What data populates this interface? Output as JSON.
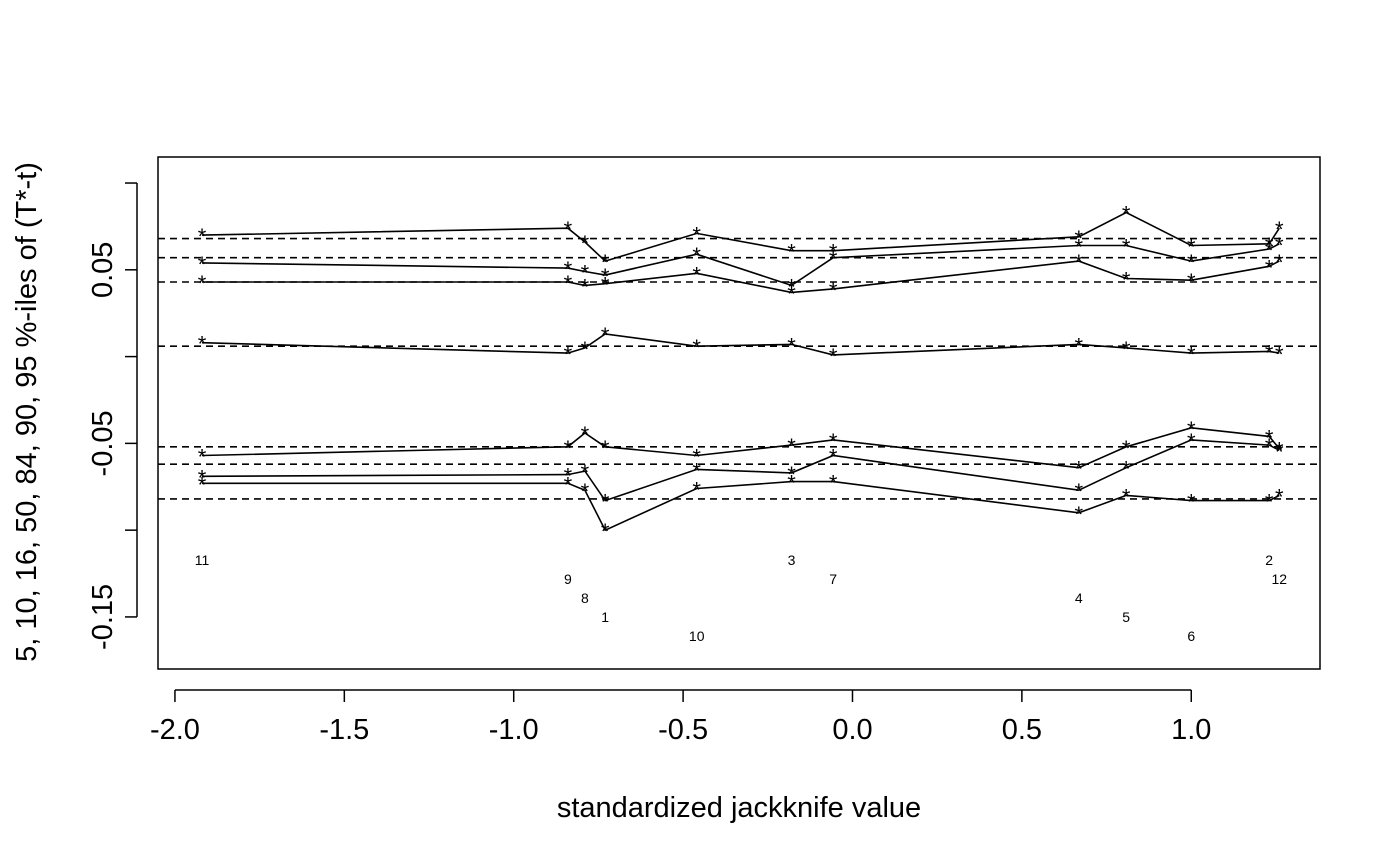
{
  "chart_data": {
    "type": "line",
    "xlabel": "standardized jackknife value",
    "ylabel": "5, 10, 16, 50, 84, 90, 95 %-iles of (T*-t)",
    "xlim": [
      -2.05,
      1.38
    ],
    "ylim": [
      -0.18,
      0.115
    ],
    "x_ticks": [
      -2.0,
      -1.5,
      -1.0,
      -0.5,
      0.0,
      0.5,
      1.0
    ],
    "x_tick_labels": [
      "-2.0",
      "-1.5",
      "-1.0",
      "-0.5",
      "0.0",
      "0.5",
      "1.0"
    ],
    "y_ticks": [
      -0.15,
      -0.1,
      -0.05,
      0.0,
      0.05,
      0.1
    ],
    "y_tick_labels": [
      "-0.15",
      "",
      "-0.05",
      "",
      "0.05",
      ""
    ],
    "grid": false,
    "reference_lines": [
      0.068,
      0.057,
      0.043,
      0.006,
      -0.052,
      -0.062,
      -0.082
    ],
    "observations": [
      {
        "label": "11",
        "x": -1.92,
        "label_y": -0.12
      },
      {
        "label": "9",
        "x": -0.84,
        "label_y": -0.131
      },
      {
        "label": "8",
        "x": -0.79,
        "label_y": -0.142
      },
      {
        "label": "1",
        "x": -0.73,
        "label_y": -0.153
      },
      {
        "label": "10",
        "x": -0.46,
        "label_y": -0.164
      },
      {
        "label": "3",
        "x": -0.18,
        "label_y": -0.12
      },
      {
        "label": "7",
        "x": -0.057,
        "label_y": -0.131
      },
      {
        "label": "4",
        "x": 0.668,
        "label_y": -0.142
      },
      {
        "label": "5",
        "x": 0.808,
        "label_y": -0.153
      },
      {
        "label": "6",
        "x": 1.0,
        "label_y": -0.164
      },
      {
        "label": "2",
        "x": 1.23,
        "label_y": -0.12
      },
      {
        "label": "12",
        "x": 1.26,
        "label_y": -0.131
      }
    ],
    "x_order": [
      -1.92,
      -0.84,
      -0.79,
      -0.73,
      -0.46,
      -0.18,
      -0.057,
      0.668,
      0.808,
      1.0,
      1.23,
      1.26
    ],
    "series": [
      {
        "values": [
          0.07,
          0.074,
          0.066,
          0.055,
          0.071,
          0.061,
          0.061,
          0.069,
          0.083,
          0.064,
          0.065,
          0.074
        ]
      },
      {
        "values": [
          0.054,
          0.051,
          0.049,
          0.047,
          0.059,
          0.041,
          0.057,
          0.064,
          0.064,
          0.055,
          0.062,
          0.065
        ]
      },
      {
        "values": [
          0.043,
          0.043,
          0.041,
          0.042,
          0.048,
          0.037,
          0.039,
          0.055,
          0.045,
          0.044,
          0.052,
          0.055
        ]
      },
      {
        "values": [
          0.008,
          0.002,
          0.005,
          0.013,
          0.006,
          0.007,
          0.001,
          0.007,
          0.005,
          0.002,
          0.003,
          0.002
        ]
      },
      {
        "values": [
          -0.057,
          -0.052,
          -0.044,
          -0.052,
          -0.057,
          -0.051,
          -0.048,
          -0.064,
          -0.052,
          -0.041,
          -0.046,
          -0.053
        ]
      },
      {
        "values": [
          -0.069,
          -0.068,
          -0.066,
          -0.083,
          -0.065,
          -0.067,
          -0.057,
          -0.077,
          -0.064,
          -0.048,
          -0.051,
          -0.054
        ]
      },
      {
        "values": [
          -0.073,
          -0.073,
          -0.077,
          -0.1,
          -0.076,
          -0.072,
          -0.072,
          -0.09,
          -0.08,
          -0.083,
          -0.083,
          -0.08
        ]
      }
    ]
  }
}
